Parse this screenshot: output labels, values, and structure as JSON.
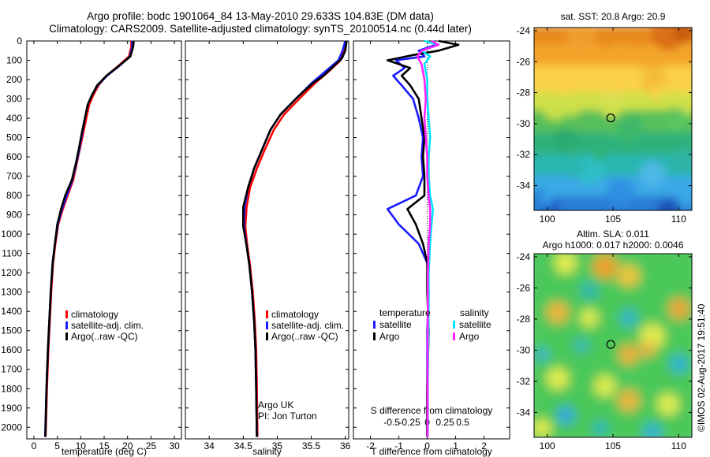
{
  "header": {
    "title_line1": "Argo profile: bodc 1901064_84 13-May-2010 29.633S 104.83E (DM data)",
    "title_line2": "Climatology: CARS2009. Satellite-adjusted climatology: synTS_20100514.nc (0.44d later)"
  },
  "colors": {
    "climatology": "#ff0000",
    "satellite": "#1a1aff",
    "argo": "#000000",
    "sat_salinity": "#00e5ff",
    "argo_salinity": "#ff22ff"
  },
  "depth_ticks": [
    0,
    100,
    200,
    300,
    400,
    500,
    600,
    700,
    800,
    900,
    1000,
    1100,
    1200,
    1300,
    1400,
    1500,
    1600,
    1700,
    1800,
    1900,
    2000
  ],
  "credit": "©IMOS 02-Aug-2017 19:51:40",
  "chart_data": [
    {
      "type": "line",
      "xlabel": "temperature (deg C)",
      "ylim": [
        0,
        2060
      ],
      "xlim": [
        -1.5,
        31.5
      ],
      "xticks": [
        "0",
        "5",
        "10",
        "15",
        "20",
        "25",
        "30"
      ],
      "xtick_values": [
        0,
        5,
        10,
        15,
        20,
        25,
        30
      ],
      "legend": [
        "climatology",
        "satellite-adj. clim.",
        "Argo(..raw -QC)"
      ],
      "series": [
        {
          "name": "climatology",
          "color": "#ff0000",
          "points": [
            [
              20.8,
              0
            ],
            [
              20.8,
              30
            ],
            [
              20.3,
              80
            ],
            [
              18,
              130
            ],
            [
              15.5,
              180
            ],
            [
              13.8,
              230
            ],
            [
              12.7,
              280
            ],
            [
              11.8,
              330
            ],
            [
              11.2,
              400
            ],
            [
              10.5,
              480
            ],
            [
              9.8,
              560
            ],
            [
              9.1,
              640
            ],
            [
              8.4,
              720
            ],
            [
              7.2,
              800
            ],
            [
              6.2,
              870
            ],
            [
              5.2,
              950
            ],
            [
              4.6,
              1050
            ],
            [
              4.1,
              1150
            ],
            [
              3.7,
              1300
            ],
            [
              3.4,
              1450
            ],
            [
              3.1,
              1600
            ],
            [
              2.8,
              1800
            ],
            [
              2.5,
              2050
            ]
          ]
        },
        {
          "name": "satellite-adj. clim.",
          "color": "#1a1aff",
          "points": [
            [
              21,
              0
            ],
            [
              21,
              30
            ],
            [
              20.5,
              80
            ],
            [
              18.2,
              130
            ],
            [
              15.6,
              180
            ],
            [
              13.6,
              230
            ],
            [
              12.4,
              280
            ],
            [
              11.5,
              330
            ],
            [
              10.9,
              400
            ],
            [
              10.3,
              480
            ],
            [
              9.7,
              560
            ],
            [
              9,
              640
            ],
            [
              8.2,
              720
            ],
            [
              7,
              800
            ],
            [
              6,
              870
            ],
            [
              5.1,
              950
            ],
            [
              4.5,
              1050
            ],
            [
              4,
              1150
            ],
            [
              3.6,
              1300
            ],
            [
              3.3,
              1450
            ],
            [
              3,
              1600
            ],
            [
              2.7,
              1800
            ],
            [
              2.4,
              2050
            ]
          ]
        },
        {
          "name": "Argo(..raw -QC)",
          "color": "#000000",
          "points": [
            [
              21.3,
              0
            ],
            [
              21.2,
              30
            ],
            [
              20.6,
              80
            ],
            [
              18.1,
              130
            ],
            [
              15.5,
              180
            ],
            [
              13.5,
              230
            ],
            [
              12.4,
              280
            ],
            [
              11.5,
              330
            ],
            [
              10.9,
              400
            ],
            [
              10.2,
              480
            ],
            [
              9.6,
              560
            ],
            [
              8.9,
              640
            ],
            [
              8.1,
              720
            ],
            [
              6.7,
              800
            ],
            [
              5.8,
              870
            ],
            [
              5,
              950
            ],
            [
              4.5,
              1050
            ],
            [
              4,
              1150
            ],
            [
              3.6,
              1300
            ],
            [
              3.3,
              1450
            ],
            [
              3,
              1600
            ],
            [
              2.7,
              1800
            ],
            [
              2.45,
              2050
            ]
          ]
        }
      ]
    },
    {
      "type": "line",
      "xlabel": "salinity",
      "ylim": [
        0,
        2060
      ],
      "xlim": [
        33.65,
        36.05
      ],
      "xticks": [
        "34",
        "34.5",
        "35",
        "35.5",
        "36"
      ],
      "xtick_values": [
        34,
        34.5,
        35,
        35.5,
        36
      ],
      "legend": [
        "climatology",
        "satellite-adj. clim.",
        "Argo(..raw -QC)"
      ],
      "annotation_line1": "Argo UK",
      "annotation_line2": "PI: Jon Turton",
      "series": [
        {
          "name": "climatology",
          "color": "#ff0000",
          "points": [
            [
              36,
              0
            ],
            [
              35.98,
              50
            ],
            [
              35.93,
              100
            ],
            [
              35.75,
              160
            ],
            [
              35.55,
              220
            ],
            [
              35.35,
              290
            ],
            [
              35.1,
              380
            ],
            [
              34.95,
              460
            ],
            [
              34.82,
              560
            ],
            [
              34.7,
              660
            ],
            [
              34.6,
              760
            ],
            [
              34.55,
              860
            ],
            [
              34.53,
              960
            ],
            [
              34.56,
              1060
            ],
            [
              34.6,
              1160
            ],
            [
              34.64,
              1300
            ],
            [
              34.67,
              1450
            ],
            [
              34.69,
              1600
            ],
            [
              34.7,
              1800
            ],
            [
              34.71,
              2050
            ]
          ]
        },
        {
          "name": "satellite-adj. clim.",
          "color": "#1a1aff",
          "points": [
            [
              36,
              0
            ],
            [
              35.96,
              50
            ],
            [
              35.9,
              100
            ],
            [
              35.7,
              160
            ],
            [
              35.5,
              220
            ],
            [
              35.3,
              290
            ],
            [
              35.05,
              380
            ],
            [
              34.9,
              460
            ],
            [
              34.78,
              560
            ],
            [
              34.66,
              660
            ],
            [
              34.57,
              760
            ],
            [
              34.52,
              860
            ],
            [
              34.51,
              960
            ],
            [
              34.55,
              1060
            ],
            [
              34.59,
              1160
            ],
            [
              34.63,
              1300
            ],
            [
              34.66,
              1450
            ],
            [
              34.68,
              1600
            ],
            [
              34.69,
              1800
            ],
            [
              34.7,
              2050
            ]
          ]
        },
        {
          "name": "Argo(..raw -QC)",
          "color": "#000000",
          "points": [
            [
              36.02,
              0
            ],
            [
              36,
              50
            ],
            [
              35.95,
              90
            ],
            [
              35.8,
              140
            ],
            [
              35.68,
              180
            ],
            [
              35.52,
              220
            ],
            [
              35.3,
              290
            ],
            [
              35.05,
              380
            ],
            [
              34.9,
              460
            ],
            [
              34.78,
              560
            ],
            [
              34.66,
              660
            ],
            [
              34.57,
              760
            ],
            [
              34.5,
              860
            ],
            [
              34.5,
              960
            ],
            [
              34.55,
              1060
            ],
            [
              34.59,
              1160
            ],
            [
              34.63,
              1300
            ],
            [
              34.66,
              1450
            ],
            [
              34.68,
              1600
            ],
            [
              34.69,
              1800
            ],
            [
              34.7,
              2050
            ]
          ]
        }
      ]
    },
    {
      "type": "line",
      "xlabel": "T difference from climatology",
      "xlabel_top": "S difference from climatology",
      "ylim": [
        0,
        2060
      ],
      "xlim": [
        -2.6,
        2.9
      ],
      "xticks": [
        "-2",
        "-1",
        "0",
        "1",
        "2"
      ],
      "xtick_values": [
        -2,
        -1,
        0,
        1,
        2
      ],
      "sticks": [
        "-0.5",
        "-0.25",
        "0",
        "0.25",
        "0.5"
      ],
      "stick_values": [
        -1.25,
        -0.625,
        0,
        0.625,
        1.25
      ],
      "legend_left_title": "temperature",
      "legend_right_title": "salinity",
      "legend_left": [
        "satellite",
        "Argo"
      ],
      "legend_right": [
        "satellite",
        "Argo"
      ],
      "series": [
        {
          "name": "satellite",
          "color": "#1a1aff",
          "points": [
            [
              0.2,
              0
            ],
            [
              0.3,
              20
            ],
            [
              -0.3,
              50
            ],
            [
              -0.1,
              80
            ],
            [
              -1.1,
              100
            ],
            [
              -0.8,
              140
            ],
            [
              -1.2,
              180
            ],
            [
              -0.9,
              230
            ],
            [
              -0.5,
              300
            ],
            [
              -0.3,
              400
            ],
            [
              -0.15,
              500
            ],
            [
              -0.2,
              600
            ],
            [
              -0.15,
              700
            ],
            [
              -0.4,
              800
            ],
            [
              -1.4,
              870
            ],
            [
              -1,
              950
            ],
            [
              -0.3,
              1050
            ],
            [
              0,
              1150
            ],
            [
              0.05,
              1300
            ],
            [
              0,
              1500
            ],
            [
              0,
              1800
            ],
            [
              0,
              2050
            ]
          ]
        },
        {
          "name": "Argo",
          "color": "#000000",
          "points": [
            [
              0.4,
              0
            ],
            [
              1.1,
              20
            ],
            [
              0.4,
              50
            ],
            [
              -0.4,
              70
            ],
            [
              -1.4,
              100
            ],
            [
              -0.6,
              140
            ],
            [
              -0.9,
              180
            ],
            [
              -0.6,
              230
            ],
            [
              -0.3,
              300
            ],
            [
              -0.2,
              400
            ],
            [
              -0.1,
              500
            ],
            [
              -0.15,
              600
            ],
            [
              -0.1,
              700
            ],
            [
              -0.1,
              800
            ],
            [
              -0.7,
              870
            ],
            [
              -0.4,
              950
            ],
            [
              -0.15,
              1050
            ],
            [
              0,
              1150
            ],
            [
              0,
              1300
            ],
            [
              0.05,
              1500
            ],
            [
              0,
              1800
            ],
            [
              0,
              2050
            ]
          ]
        },
        {
          "name": "satellite",
          "color": "#00e5ff",
          "points": [
            [
              -0.1,
              0
            ],
            [
              0.4,
              20
            ],
            [
              -0.2,
              50
            ],
            [
              0.1,
              80
            ],
            [
              -0.1,
              120
            ],
            [
              0,
              200
            ],
            [
              0,
              300
            ],
            [
              0.05,
              400
            ],
            [
              0.1,
              500
            ],
            [
              0.05,
              600
            ],
            [
              0.05,
              700
            ],
            [
              0.1,
              800
            ],
            [
              0.2,
              870
            ],
            [
              0.15,
              950
            ],
            [
              0.1,
              1050
            ],
            [
              0.05,
              1200
            ],
            [
              0.05,
              1400
            ],
            [
              0.03,
              1600
            ],
            [
              0.02,
              1800
            ],
            [
              0.02,
              2050
            ]
          ]
        },
        {
          "name": "Argo",
          "color": "#ff22ff",
          "points": [
            [
              0.15,
              0
            ],
            [
              0.4,
              20
            ],
            [
              -0.2,
              50
            ],
            [
              -0.35,
              80
            ],
            [
              -0.2,
              120
            ],
            [
              -0.1,
              200
            ],
            [
              -0.05,
              300
            ],
            [
              -0.1,
              400
            ],
            [
              -0.05,
              500
            ],
            [
              0,
              600
            ],
            [
              0,
              700
            ],
            [
              0.05,
              800
            ],
            [
              0.1,
              870
            ],
            [
              0.1,
              950
            ],
            [
              0.05,
              1050
            ],
            [
              0.02,
              1200
            ],
            [
              0.02,
              1400
            ],
            [
              0.01,
              1600
            ],
            [
              0.01,
              1800
            ],
            [
              0.01,
              2050
            ]
          ]
        }
      ]
    },
    {
      "type": "heatmap",
      "title": "sat. SST: 20.8  Argo: 20.9",
      "xlim": [
        99,
        111
      ],
      "ylim": [
        -35.6,
        -23.8
      ],
      "xticks": [
        "100",
        "105",
        "110"
      ],
      "xtick_values": [
        100,
        105,
        110
      ],
      "yticks": [
        "-24",
        "-26",
        "-28",
        "-30",
        "-32",
        "-34"
      ],
      "ytick_values": [
        -24,
        -26,
        -28,
        -30,
        -32,
        -34
      ],
      "marker": {
        "lon": 104.83,
        "lat": -29.633
      }
    },
    {
      "type": "heatmap",
      "title_line1": "Altim. SLA: 0.011",
      "title_line2": "Argo h1000: 0.017  h2000: 0.0046",
      "xlim": [
        99,
        111
      ],
      "ylim": [
        -35.6,
        -23.8
      ],
      "xticks": [
        "100",
        "105",
        "110"
      ],
      "xtick_values": [
        100,
        105,
        110
      ],
      "yticks": [
        "-24",
        "-26",
        "-28",
        "-30",
        "-32",
        "-34"
      ],
      "ytick_values": [
        -24,
        -26,
        -28,
        -30,
        -32,
        -34
      ],
      "marker": {
        "lon": 104.83,
        "lat": -29.633
      }
    }
  ]
}
